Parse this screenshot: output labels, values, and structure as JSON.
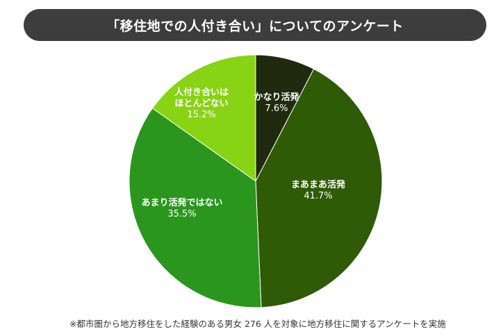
{
  "chart_data": {
    "type": "pie",
    "title": "「移住地での人付き合い」についてのアンケート",
    "slices": [
      {
        "label": "かなり活発",
        "value": 7.6,
        "display": "7.6%",
        "color": "#1f2a0e"
      },
      {
        "label": "まあまあ活発",
        "value": 41.7,
        "display": "41.7%",
        "color": "#2f5a06"
      },
      {
        "label": "あまり活発ではない",
        "value": 35.5,
        "display": "35.5%",
        "color": "#2a961e"
      },
      {
        "label": "人付き合いは\nほとんどない",
        "value": 15.2,
        "display": "15.2%",
        "color": "#88d314"
      }
    ],
    "start": "12 o'clock",
    "direction": "clockwise",
    "footnote": "※都市圏から地方移住をした経験のある男女 276 人を対象に地方移住に関するアンケートを実施"
  }
}
